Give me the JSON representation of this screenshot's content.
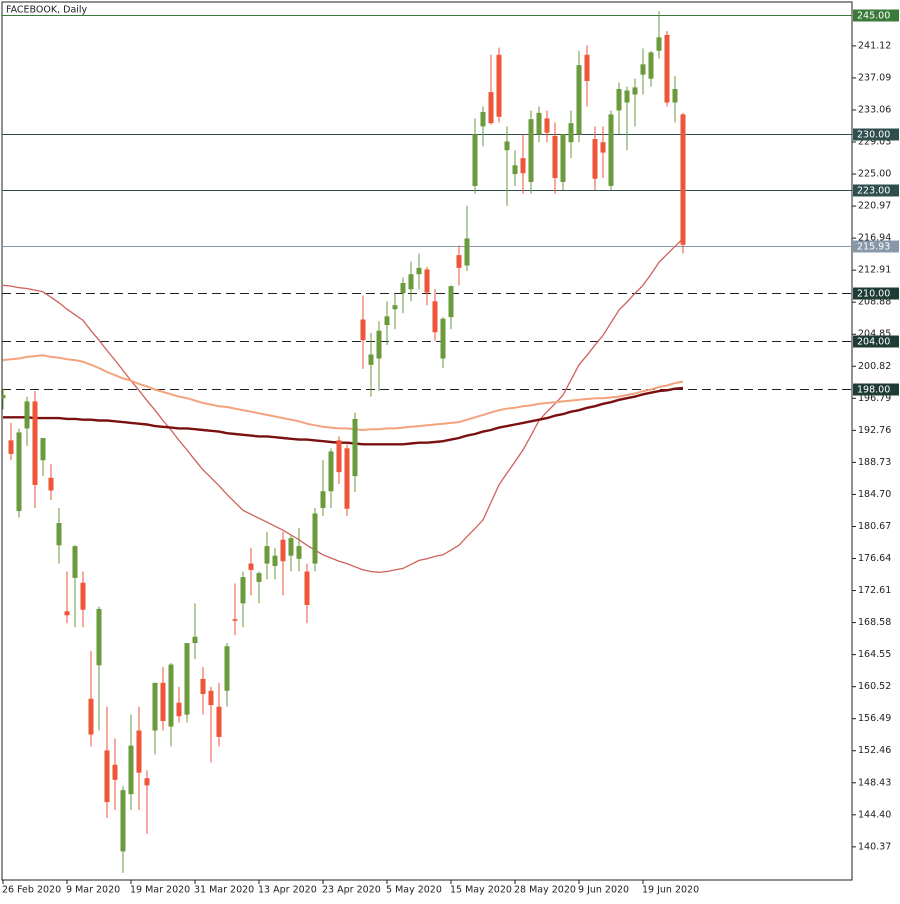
{
  "chart_data": {
    "type": "candlestick",
    "title": "FACEBOOK, Daily",
    "categories": [
      "26 Feb 2020",
      null,
      null,
      null,
      null,
      null,
      null,
      null,
      "9 Mar 2020",
      null,
      null,
      null,
      null,
      null,
      null,
      null,
      "19 Mar 2020",
      null,
      null,
      null,
      null,
      null,
      null,
      null,
      "31 Mar 2020",
      null,
      null,
      null,
      null,
      null,
      null,
      null,
      "13 Apr 2020",
      null,
      null,
      null,
      null,
      null,
      null,
      null,
      "23 Apr 2020",
      null,
      null,
      null,
      null,
      null,
      null,
      null,
      "5 May 2020",
      null,
      null,
      null,
      null,
      null,
      null,
      null,
      "15 May 2020",
      null,
      null,
      null,
      null,
      null,
      null,
      null,
      "28 May 2020",
      null,
      null,
      null,
      null,
      null,
      null,
      null,
      "9 Jun 2020",
      null,
      null,
      null,
      null,
      null,
      null,
      null,
      "19 Jun 2020",
      null,
      null,
      null,
      null,
      null
    ],
    "open": [
      196.8,
      191.5,
      182.6,
      193.0,
      196.4,
      189.0,
      186.8,
      178.3,
      170.0,
      174.2,
      173.6,
      159.0,
      163.2,
      152.5,
      150.7,
      139.8,
      147.0,
      155.0,
      149.0,
      155.0,
      161.0,
      155.5,
      158.5,
      157.0,
      166.0,
      161.5,
      160.0,
      158.0,
      160.0,
      169.0,
      171.0,
      176.0,
      173.7,
      176.0,
      175.7,
      179.0,
      177.0,
      176.6,
      175.0,
      176.0,
      183.0,
      185.1,
      191.5,
      190.5,
      187.0,
      206.7,
      201.0,
      201.8,
      206.0,
      208.0,
      210.0,
      210.5,
      212.4,
      213.0,
      209.0,
      201.8,
      207.0,
      214.8,
      213.5,
      223.5,
      231.0,
      235.3,
      240.0,
      228.0,
      225.0,
      227.0,
      224.0,
      230.0,
      232.0,
      229.8,
      224.0,
      229.0,
      230.0,
      240.0,
      229.4,
      229.0,
      223.5,
      233.0,
      234.0,
      235.0,
      237.5,
      237.0,
      240.5,
      242.5,
      234.0,
      232.5
    ],
    "high": [
      198.0,
      193.7,
      193.0,
      197.0,
      197.7,
      191.8,
      188.5,
      183.0,
      175.0,
      178.3,
      175.0,
      165.0,
      170.6,
      158.0,
      154.0,
      148.0,
      157.0,
      158.0,
      150.0,
      161.0,
      163.0,
      163.5,
      160.5,
      166.0,
      171.0,
      163.0,
      160.5,
      161.0,
      166.0,
      173.5,
      175.0,
      178.0,
      175.0,
      180.0,
      178.0,
      180.0,
      179.5,
      180.5,
      176.0,
      183.0,
      189.0,
      190.5,
      192.0,
      191.0,
      195.0,
      209.7,
      205.0,
      206.5,
      209.0,
      210.0,
      212.0,
      214.0,
      215.0,
      213.3,
      210.5,
      207.0,
      211.0,
      216.0,
      221.0,
      232.0,
      233.5,
      240.0,
      240.9,
      231.0,
      228.0,
      230.0,
      233.0,
      233.5,
      233.0,
      231.5,
      230.0,
      233.0,
      240.5,
      241.2,
      231.0,
      231.0,
      233.0,
      236.5,
      236.0,
      237.0,
      240.8,
      240.5,
      245.5,
      243.0,
      237.3,
      232.7
    ],
    "low": [
      195.4,
      189.0,
      181.8,
      190.8,
      183.0,
      187.0,
      184.0,
      176.0,
      168.5,
      168.0,
      168.0,
      153.0,
      155.0,
      144.0,
      145.0,
      137.1,
      145.0,
      145.0,
      142.0,
      152.0,
      155.0,
      153.0,
      156.0,
      156.0,
      164.0,
      157.0,
      151.0,
      153.0,
      158.0,
      167.0,
      168.0,
      172.0,
      171.0,
      174.0,
      174.0,
      172.0,
      175.0,
      175.0,
      168.5,
      175.0,
      182.0,
      183.0,
      186.0,
      182.0,
      185.0,
      200.5,
      197.0,
      197.7,
      203.5,
      205.5,
      207.5,
      209.0,
      210.5,
      208.5,
      204.0,
      200.6,
      205.5,
      211.0,
      212.8,
      222.5,
      228.5,
      231.2,
      231.5,
      221.0,
      223.5,
      222.5,
      222.5,
      229.0,
      229.0,
      222.5,
      223.0,
      227.0,
      229.0,
      233.5,
      223.0,
      224.5,
      223.0,
      230.0,
      228.0,
      231.0,
      235.0,
      236.0,
      239.5,
      233.5,
      231.5,
      215.0
    ],
    "close": [
      197.2,
      189.8,
      192.5,
      196.4,
      185.9,
      191.8,
      185.2,
      181.1,
      169.5,
      178.2,
      170.2,
      154.5,
      170.3,
      146.0,
      148.8,
      147.5,
      153.1,
      149.7,
      148.1,
      161.0,
      156.2,
      163.3,
      156.8,
      166.0,
      166.8,
      159.6,
      158.2,
      154.2,
      165.6,
      168.8,
      174.3,
      175.2,
      174.8,
      178.2,
      177.0,
      176.3,
      179.2,
      178.2,
      170.8,
      182.3,
      185.1,
      190.1,
      187.5,
      182.9,
      194.2,
      204.1,
      202.3,
      205.3,
      207.1,
      208.5,
      211.3,
      212.4,
      213.2,
      210.1,
      205.1,
      206.8,
      210.9,
      213.2,
      216.9,
      230.0,
      232.8,
      231.4,
      232.2,
      229.1,
      226.1,
      225.1,
      231.9,
      232.7,
      230.2,
      224.5,
      230.0,
      231.4,
      238.7,
      236.7,
      224.4,
      227.7,
      232.5,
      235.7,
      235.5,
      235.9,
      238.8,
      240.3,
      242.2,
      234.0,
      235.7,
      216.1
    ],
    "up_color": "#6b9a3c",
    "down_color": "#ef5538",
    "series": [
      {
        "color": "#d0605a",
        "width": 1.3,
        "values": [
          211.0,
          210.9,
          210.7,
          210.6,
          210.4,
          210.2,
          209.5,
          208.8,
          208.0,
          207.3,
          206.6,
          205.3,
          204.1,
          202.8,
          201.6,
          200.3,
          199.0,
          197.8,
          196.5,
          195.3,
          194.0,
          192.8,
          191.5,
          190.3,
          189.0,
          187.8,
          186.8,
          185.8,
          184.7,
          183.7,
          182.7,
          182.2,
          181.7,
          181.2,
          180.7,
          180.2,
          179.6,
          179.0,
          178.3,
          177.7,
          177.1,
          176.7,
          176.3,
          176.0,
          175.6,
          175.2,
          175.0,
          174.9,
          175.0,
          175.2,
          175.4,
          175.9,
          176.4,
          176.6,
          176.9,
          177.1,
          177.7,
          178.3,
          179.4,
          180.4,
          181.5,
          183.7,
          185.9,
          187.4,
          188.8,
          190.3,
          192.1,
          194.0,
          195.1,
          196.1,
          197.2,
          199.1,
          201.0,
          202.2,
          203.5,
          204.7,
          206.3,
          207.9,
          208.9,
          210.0,
          211.0,
          212.4,
          213.9,
          214.9,
          215.9,
          216.9
        ]
      },
      {
        "color": "#f4a27c",
        "width": 2,
        "values": [
          201.6,
          201.7,
          201.8,
          202.0,
          202.1,
          202.2,
          202.0,
          201.9,
          201.7,
          201.6,
          201.4,
          201.0,
          200.6,
          200.1,
          199.7,
          199.3,
          199.0,
          198.6,
          198.3,
          197.9,
          197.6,
          197.3,
          197.0,
          196.8,
          196.5,
          196.2,
          196.0,
          195.8,
          195.7,
          195.5,
          195.3,
          195.1,
          194.9,
          194.7,
          194.5,
          194.3,
          194.1,
          193.9,
          193.6,
          193.4,
          193.2,
          193.1,
          193.0,
          193.0,
          192.9,
          192.8,
          192.9,
          192.9,
          193.0,
          193.0,
          193.1,
          193.2,
          193.3,
          193.4,
          193.5,
          193.6,
          193.7,
          193.8,
          194.1,
          194.4,
          194.7,
          195.0,
          195.3,
          195.5,
          195.6,
          195.8,
          195.9,
          196.1,
          196.2,
          196.3,
          196.4,
          196.5,
          196.6,
          196.7,
          196.8,
          196.8,
          196.9,
          197.0,
          197.2,
          197.4,
          197.7,
          197.9,
          198.2,
          198.4,
          198.7,
          198.9
        ]
      },
      {
        "color": "#7a1010",
        "width": 2.4,
        "values": [
          194.4,
          194.4,
          194.4,
          194.4,
          194.3,
          194.3,
          194.3,
          194.3,
          194.2,
          194.2,
          194.1,
          194.1,
          194.0,
          194.0,
          193.9,
          193.8,
          193.7,
          193.6,
          193.5,
          193.3,
          193.2,
          193.1,
          193.0,
          193.0,
          192.9,
          192.8,
          192.7,
          192.6,
          192.4,
          192.3,
          192.2,
          192.1,
          192.0,
          192.0,
          191.9,
          191.8,
          191.7,
          191.6,
          191.6,
          191.5,
          191.4,
          191.3,
          191.2,
          191.2,
          191.1,
          191.0,
          191.0,
          191.0,
          191.0,
          191.0,
          191.0,
          191.1,
          191.2,
          191.2,
          191.3,
          191.4,
          191.6,
          191.8,
          192.1,
          192.3,
          192.6,
          192.8,
          193.1,
          193.3,
          193.5,
          193.7,
          193.9,
          194.1,
          194.3,
          194.6,
          194.8,
          195.1,
          195.3,
          195.6,
          195.8,
          196.1,
          196.3,
          196.6,
          196.8,
          197.0,
          197.3,
          197.5,
          197.7,
          197.8,
          198.0,
          198.1
        ]
      }
    ],
    "levels": [
      {
        "value": 245,
        "label": "245.00",
        "color": "#3c7a3c",
        "dashed": false
      },
      {
        "value": 230,
        "label": "230.00",
        "color": "#2f4f4f",
        "dashed": false
      },
      {
        "value": 223,
        "label": "223.00",
        "color": "#2f4f4f",
        "dashed": false
      },
      {
        "value": 215.93,
        "label": "215.93",
        "color": "#8898a8",
        "dashed": false
      },
      {
        "value": 210,
        "label": "210.00",
        "color": "#1e3b36",
        "dashed": true
      },
      {
        "value": 204,
        "label": "204.00",
        "color": "#1e3b36",
        "dashed": true
      },
      {
        "value": 198,
        "label": "198.00",
        "color": "#1e3b36",
        "dashed": true
      }
    ],
    "ylim": [
      136.2,
      246.64
    ],
    "yticks": [
      241.12,
      237.09,
      233.06,
      229.03,
      {
        "value": 225,
        "label": "225.00"
      },
      220.97,
      216.94,
      212.91,
      208.88,
      204.85,
      200.82,
      196.79,
      192.76,
      188.73,
      {
        "value": 184.7,
        "label": "184.70"
      },
      180.67,
      176.64,
      172.61,
      168.58,
      164.55,
      160.52,
      156.49,
      152.46,
      148.43,
      {
        "value": 144.4,
        "label": "144.40"
      },
      140.37
    ]
  }
}
